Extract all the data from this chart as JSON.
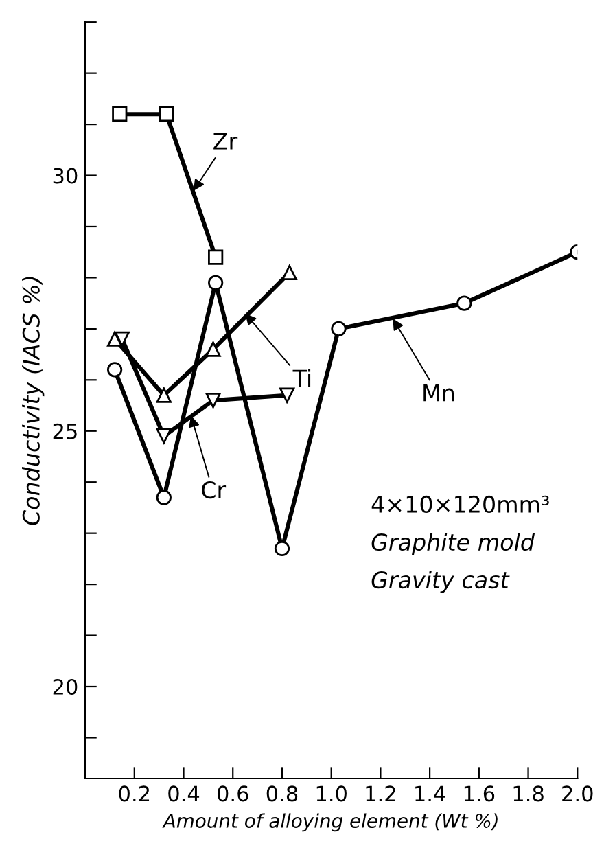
{
  "chart_data": {
    "type": "line",
    "xlabel": "Amount of alloying element (Wt %)",
    "ylabel": "Conductivity (IACS %)",
    "xlim": [
      0,
      2.0
    ],
    "xticks": [
      0.2,
      0.4,
      0.6,
      0.8,
      {
        "value": 1.0,
        "label": "1.0"
      },
      1.2,
      1.4,
      1.6,
      1.8,
      {
        "value": 2.0,
        "label": "2.0"
      }
    ],
    "ylim": [
      18.2,
      33
    ],
    "yticks": [
      {
        "value": 19,
        "label": null
      },
      20,
      {
        "value": 21,
        "label": null
      },
      {
        "value": 22,
        "label": null
      },
      {
        "value": 23,
        "label": null
      },
      {
        "value": 24,
        "label": null
      },
      25,
      {
        "value": 26,
        "label": null
      },
      {
        "value": 27,
        "label": null
      },
      {
        "value": 28,
        "label": null
      },
      {
        "value": 29,
        "label": null
      },
      30,
      {
        "value": 31,
        "label": null
      },
      {
        "value": 32,
        "label": null
      },
      {
        "value": 33,
        "label": null
      }
    ],
    "grid": false,
    "legend": false,
    "line_style": "solid",
    "series": [
      {
        "color": "#000000",
        "marker": "square",
        "x": [
          0.14,
          0.33,
          0.53
        ],
        "values": [
          31.2,
          31.2,
          28.4
        ]
      },
      {
        "color": "#000000",
        "marker": "circle",
        "x": [
          0.12,
          0.32,
          0.53,
          0.8,
          1.03,
          1.54,
          2.0
        ],
        "values": [
          26.2,
          23.7,
          27.9,
          22.7,
          27.0,
          27.5,
          28.5
        ]
      },
      {
        "color": "#000000",
        "marker": "triangle",
        "x": [
          0.12,
          0.32,
          0.52,
          0.83
        ],
        "values": [
          26.8,
          25.7,
          26.6,
          28.1
        ]
      },
      {
        "color": "#000000",
        "marker": "triangle_down",
        "x": [
          0.15,
          0.32,
          0.52,
          0.82
        ],
        "values": [
          26.8,
          24.9,
          25.6,
          25.7
        ]
      }
    ],
    "annotations": [
      {
        "text": "Zr",
        "x": 0.44,
        "y": 29.7
      },
      {
        "text": "Ti",
        "x": 0.65,
        "y": 27.3
      },
      {
        "text": "Cr",
        "x": 0.43,
        "y": 25.3
      },
      {
        "text": "Mn",
        "x": 1.25,
        "y": 27.2
      },
      "4×10×120mm³",
      "Graphite mold",
      "Gravity cast"
    ]
  }
}
